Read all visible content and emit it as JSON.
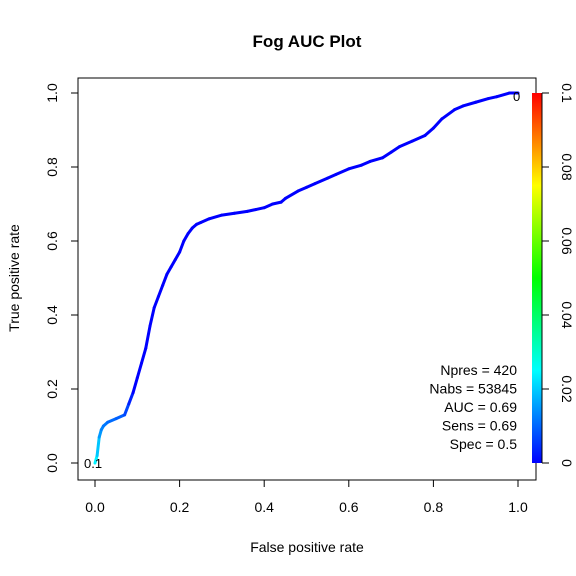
{
  "chart_data": {
    "type": "line",
    "title": "Fog AUC Plot",
    "xlabel": "False positive rate",
    "ylabel": "True positive rate",
    "xlim": [
      0,
      1
    ],
    "ylim": [
      0,
      1
    ],
    "x_ticks": [
      "0.0",
      "0.2",
      "0.4",
      "0.6",
      "0.8",
      "1.0"
    ],
    "y_ticks": [
      "0.0",
      "0.2",
      "0.4",
      "0.6",
      "0.8",
      "1.0"
    ],
    "grid": false,
    "legend": "none",
    "series": [
      {
        "x": [
          0,
          0.005,
          0.01,
          0.015,
          0.02,
          0.03,
          0.05,
          0.07,
          0.08,
          0.09,
          0.1,
          0.11,
          0.12,
          0.13,
          0.14,
          0.15,
          0.16,
          0.17,
          0.18,
          0.19,
          0.2,
          0.21,
          0.22,
          0.23,
          0.24,
          0.25,
          0.27,
          0.3,
          0.33,
          0.36,
          0.38,
          0.4,
          0.42,
          0.44,
          0.45,
          0.48,
          0.5,
          0.52,
          0.55,
          0.57,
          0.6,
          0.63,
          0.65,
          0.68,
          0.7,
          0.72,
          0.75,
          0.78,
          0.8,
          0.82,
          0.85,
          0.87,
          0.9,
          0.93,
          0.95,
          0.98,
          1.0
        ],
        "y": [
          0,
          0.02,
          0.07,
          0.09,
          0.1,
          0.11,
          0.12,
          0.13,
          0.16,
          0.19,
          0.23,
          0.27,
          0.31,
          0.37,
          0.42,
          0.45,
          0.48,
          0.51,
          0.53,
          0.55,
          0.57,
          0.6,
          0.62,
          0.635,
          0.645,
          0.65,
          0.66,
          0.67,
          0.675,
          0.68,
          0.685,
          0.69,
          0.7,
          0.705,
          0.715,
          0.735,
          0.745,
          0.755,
          0.77,
          0.78,
          0.795,
          0.805,
          0.815,
          0.825,
          0.84,
          0.855,
          0.87,
          0.885,
          0.905,
          0.93,
          0.955,
          0.965,
          0.975,
          0.985,
          0.99,
          1.0,
          1.0
        ],
        "colors": [
          "#0000ff",
          "#00ffff"
        ]
      }
    ],
    "annotations": [
      "Npres = 420",
      "Nabs = 53845",
      "AUC = 0.69",
      "Sens = 0.69",
      "Spec = 0.5"
    ],
    "threshold_labels": {
      "start": "0.1",
      "end": "0"
    },
    "colorbar": {
      "range": [
        0,
        0.1
      ],
      "ticks": [
        "0",
        "0.02",
        "0.04",
        "0.06",
        "0.08",
        "0.1"
      ],
      "colors": [
        "#0000ff",
        "#00ffff",
        "#00ff00",
        "#ffff00",
        "#ff0000"
      ]
    }
  }
}
